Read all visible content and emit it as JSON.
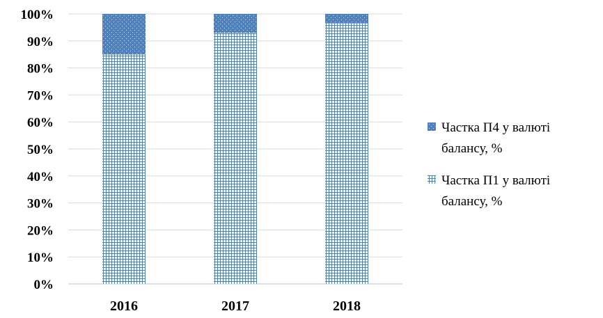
{
  "chart_data": {
    "type": "bar",
    "stacked": true,
    "percent_stacked": true,
    "categories": [
      "2016",
      "2017",
      "2018"
    ],
    "series": [
      {
        "name": "Частка П1 у валюті балансу, %",
        "legend_lines": [
          "Частка П1 у валюті",
          "балансу, %"
        ],
        "values": [
          85,
          93,
          96.5
        ],
        "color": "#4f81bd",
        "pattern": "grid"
      },
      {
        "name": "Частка П4 у валюті балансу, %",
        "legend_lines": [
          "Частка П4 у валюті",
          "балансу, %"
        ],
        "values": [
          15,
          7,
          3.5
        ],
        "color": "#4f81bd",
        "pattern": "dots"
      }
    ],
    "y_tick_labels": [
      "0%",
      "10%",
      "20%",
      "30%",
      "40%",
      "50%",
      "60%",
      "70%",
      "80%",
      "90%",
      "100%"
    ],
    "ylim": [
      0,
      100
    ],
    "grid": true,
    "legend_position": "right",
    "title": "",
    "xlabel": "",
    "ylabel": ""
  }
}
